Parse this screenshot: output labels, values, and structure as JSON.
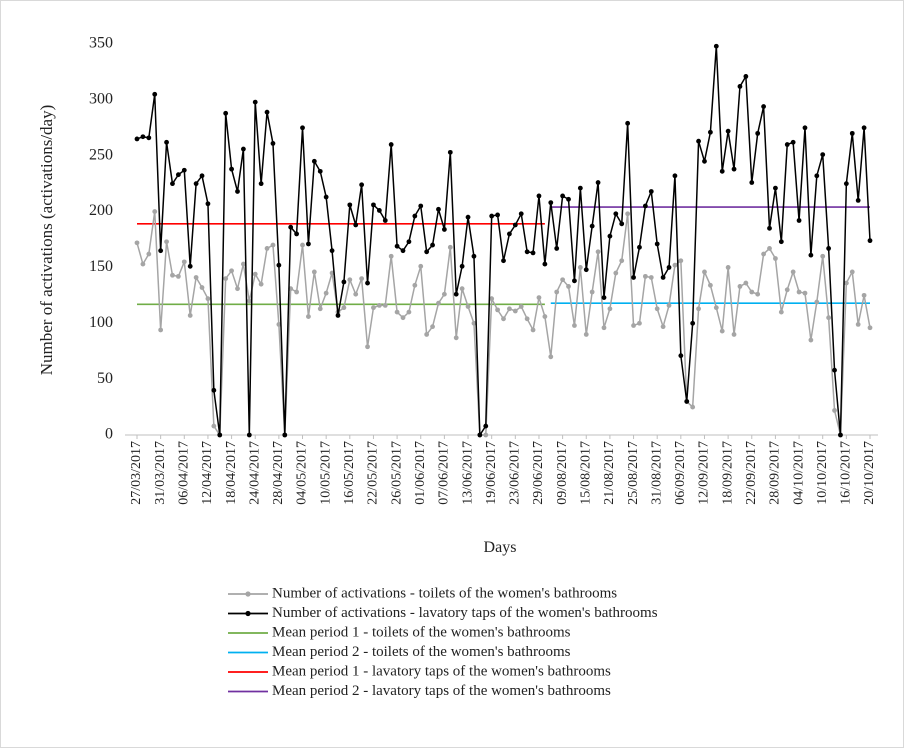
{
  "chart_data": {
    "type": "line",
    "ylabel": "Number of activations (activations/day)",
    "xlabel": "Days",
    "ylim": [
      0,
      350
    ],
    "yticks": [
      0,
      50,
      100,
      150,
      200,
      250,
      300,
      350
    ],
    "grid": false,
    "legend": "bottom",
    "categories": [
      "27/03/2017",
      null,
      null,
      null,
      "31/03/2017",
      null,
      null,
      null,
      "06/04/2017",
      null,
      null,
      null,
      "12/04/2017",
      null,
      null,
      null,
      "18/04/2017",
      null,
      null,
      null,
      "24/04/2017",
      null,
      null,
      null,
      "28/04/2017",
      null,
      null,
      null,
      "04/05/2017",
      null,
      null,
      null,
      "10/05/2017",
      null,
      null,
      null,
      "16/05/2017",
      null,
      null,
      null,
      "22/05/2017",
      null,
      null,
      null,
      "26/05/2017",
      null,
      null,
      null,
      "01/06/2017",
      null,
      null,
      null,
      "07/06/2017",
      null,
      null,
      null,
      "13/06/2017",
      null,
      null,
      null,
      "19/06/2017",
      null,
      null,
      null,
      "23/06/2017",
      null,
      null,
      null,
      "29/06/2017",
      null,
      null,
      null,
      "09/08/2017",
      null,
      null,
      null,
      "15/08/2017",
      null,
      null,
      null,
      "21/08/2017",
      null,
      null,
      null,
      "25/08/2017",
      null,
      null,
      null,
      "31/08/2017",
      null,
      null,
      null,
      "06/09/2017",
      null,
      null,
      null,
      "12/09/2017",
      null,
      null,
      null,
      "18/09/2017",
      null,
      null,
      null,
      "22/09/2017",
      null,
      null,
      null,
      "28/09/2017",
      null,
      null,
      null,
      "04/10/2017",
      null,
      null,
      null,
      "10/10/2017",
      null,
      null,
      null,
      "16/10/2017",
      null,
      null,
      null,
      "20/10/2017"
    ],
    "series": [
      {
        "name": "Number of activations - toilets of the women's bathrooms",
        "color": "#a5a5a5",
        "markers": true,
        "values": [
          172,
          153,
          162,
          200,
          94,
          173,
          143,
          142,
          155,
          107,
          141,
          132,
          122,
          8,
          0,
          140,
          147,
          131,
          153,
          120,
          144,
          135,
          167,
          170,
          99,
          0,
          131,
          128,
          170,
          106,
          146,
          113,
          127,
          145,
          110,
          114,
          139,
          126,
          140,
          79,
          114,
          116,
          116,
          160,
          110,
          105,
          110,
          134,
          151,
          90,
          97,
          118,
          126,
          168,
          87,
          131,
          115,
          100,
          0,
          0,
          122,
          112,
          104,
          113,
          111,
          115,
          104,
          94,
          123,
          106,
          70,
          128,
          139,
          133,
          98,
          150,
          90,
          128,
          164,
          96,
          113,
          145,
          156,
          198,
          98,
          100,
          142,
          141,
          113,
          97,
          116,
          152,
          156,
          30,
          25,
          113,
          146,
          134,
          114,
          93,
          150,
          90,
          133,
          136,
          128,
          126,
          162,
          167,
          158,
          110,
          130,
          146,
          128,
          127,
          85,
          119,
          160,
          105,
          22,
          0,
          136,
          146,
          99,
          125,
          96
        ]
      },
      {
        "name": "Number of activations - lavatory taps of the women's bathrooms",
        "color": "#000000",
        "markers": true,
        "values": [
          265,
          267,
          266,
          305,
          165,
          262,
          225,
          233,
          237,
          151,
          225,
          232,
          207,
          40,
          0,
          288,
          238,
          218,
          256,
          0,
          298,
          225,
          289,
          261,
          152,
          0,
          186,
          180,
          275,
          171,
          245,
          236,
          213,
          165,
          107,
          137,
          206,
          188,
          224,
          136,
          206,
          201,
          192,
          260,
          169,
          165,
          173,
          196,
          205,
          164,
          170,
          202,
          184,
          253,
          126,
          151,
          195,
          160,
          0,
          8,
          196,
          197,
          156,
          180,
          188,
          198,
          164,
          163,
          214,
          153,
          208,
          167,
          214,
          211,
          138,
          221,
          148,
          187,
          226,
          123,
          178,
          198,
          189,
          279,
          141,
          168,
          205,
          218,
          171,
          141,
          150,
          232,
          71,
          30,
          100,
          263,
          245,
          271,
          348,
          236,
          272,
          238,
          312,
          321,
          226,
          270,
          294,
          185,
          221,
          173,
          260,
          262,
          192,
          275,
          161,
          232,
          251,
          167,
          58,
          0,
          225,
          270,
          210,
          275,
          174
        ]
      },
      {
        "name": "Mean period 1 - toilets of the women's bathrooms",
        "color": "#70ad47",
        "markers": false,
        "values": [
          117,
          117,
          117,
          117,
          117,
          117,
          117,
          117,
          117,
          117,
          117,
          117,
          117,
          117,
          117,
          117,
          117,
          117,
          117,
          117,
          117,
          117,
          117,
          117,
          117,
          117,
          117,
          117,
          117,
          117,
          117,
          117,
          117,
          117,
          117,
          117,
          117,
          117,
          117,
          117,
          117,
          117,
          117,
          117,
          117,
          117,
          117,
          117,
          117,
          117,
          117,
          117,
          117,
          117,
          117,
          117,
          117,
          117,
          117,
          117,
          117,
          117,
          117,
          117,
          117,
          117,
          117,
          117,
          117,
          117,
          null,
          null,
          null,
          null,
          null,
          null,
          null,
          null,
          null,
          null,
          null,
          null,
          null,
          null,
          null,
          null,
          null,
          null,
          null,
          null,
          null,
          null,
          null,
          null,
          null,
          null,
          null,
          null,
          null,
          null,
          null,
          null,
          null,
          null,
          null,
          null,
          null,
          null,
          null,
          null,
          null,
          null,
          null,
          null,
          null,
          null,
          null,
          null,
          null,
          null,
          null,
          null,
          null,
          null,
          null
        ]
      },
      {
        "name": "Mean period 2 - toilets of the women's bathrooms",
        "color": "#00b0f0",
        "markers": false,
        "values": [
          null,
          null,
          null,
          null,
          null,
          null,
          null,
          null,
          null,
          null,
          null,
          null,
          null,
          null,
          null,
          null,
          null,
          null,
          null,
          null,
          null,
          null,
          null,
          null,
          null,
          null,
          null,
          null,
          null,
          null,
          null,
          null,
          null,
          null,
          null,
          null,
          null,
          null,
          null,
          null,
          null,
          null,
          null,
          null,
          null,
          null,
          null,
          null,
          null,
          null,
          null,
          null,
          null,
          null,
          null,
          null,
          null,
          null,
          null,
          null,
          null,
          null,
          null,
          null,
          null,
          null,
          null,
          null,
          null,
          null,
          118,
          118,
          118,
          118,
          118,
          118,
          118,
          118,
          118,
          118,
          118,
          118,
          118,
          118,
          118,
          118,
          118,
          118,
          118,
          118,
          118,
          118,
          118,
          118,
          118,
          118,
          118,
          118,
          118,
          118,
          118,
          118,
          118,
          118,
          118,
          118,
          118,
          118,
          118,
          118,
          118,
          118,
          118,
          118,
          118,
          118,
          118,
          118,
          118,
          118,
          118,
          118,
          118,
          118,
          118
        ]
      },
      {
        "name": "Mean period 1 - lavatory taps of the women's bathrooms",
        "color": "#ff0000",
        "markers": false,
        "values": [
          189,
          189,
          189,
          189,
          189,
          189,
          189,
          189,
          189,
          189,
          189,
          189,
          189,
          189,
          189,
          189,
          189,
          189,
          189,
          189,
          189,
          189,
          189,
          189,
          189,
          189,
          189,
          189,
          189,
          189,
          189,
          189,
          189,
          189,
          189,
          189,
          189,
          189,
          189,
          189,
          189,
          189,
          189,
          189,
          189,
          189,
          189,
          189,
          189,
          189,
          189,
          189,
          189,
          189,
          189,
          189,
          189,
          189,
          189,
          189,
          189,
          189,
          189,
          189,
          189,
          189,
          189,
          189,
          189,
          189,
          null,
          null,
          null,
          null,
          null,
          null,
          null,
          null,
          null,
          null,
          null,
          null,
          null,
          null,
          null,
          null,
          null,
          null,
          null,
          null,
          null,
          null,
          null,
          null,
          null,
          null,
          null,
          null,
          null,
          null,
          null,
          null,
          null,
          null,
          null,
          null,
          null,
          null,
          null,
          null,
          null,
          null,
          null,
          null,
          null,
          null,
          null,
          null,
          null,
          null,
          null,
          null,
          null,
          null,
          null
        ]
      },
      {
        "name": "Mean period 2 - lavatory taps of the women's bathrooms",
        "color": "#7030a0",
        "markers": false,
        "values": [
          null,
          null,
          null,
          null,
          null,
          null,
          null,
          null,
          null,
          null,
          null,
          null,
          null,
          null,
          null,
          null,
          null,
          null,
          null,
          null,
          null,
          null,
          null,
          null,
          null,
          null,
          null,
          null,
          null,
          null,
          null,
          null,
          null,
          null,
          null,
          null,
          null,
          null,
          null,
          null,
          null,
          null,
          null,
          null,
          null,
          null,
          null,
          null,
          null,
          null,
          null,
          null,
          null,
          null,
          null,
          null,
          null,
          null,
          null,
          null,
          null,
          null,
          null,
          null,
          null,
          null,
          null,
          null,
          null,
          null,
          204,
          204,
          204,
          204,
          204,
          204,
          204,
          204,
          204,
          204,
          204,
          204,
          204,
          204,
          204,
          204,
          204,
          204,
          204,
          204,
          204,
          204,
          204,
          204,
          204,
          204,
          204,
          204,
          204,
          204,
          204,
          204,
          204,
          204,
          204,
          204,
          204,
          204,
          204,
          204,
          204,
          204,
          204,
          204,
          204,
          204,
          204,
          204,
          204,
          204,
          204,
          204,
          204,
          204,
          204
        ]
      }
    ]
  }
}
